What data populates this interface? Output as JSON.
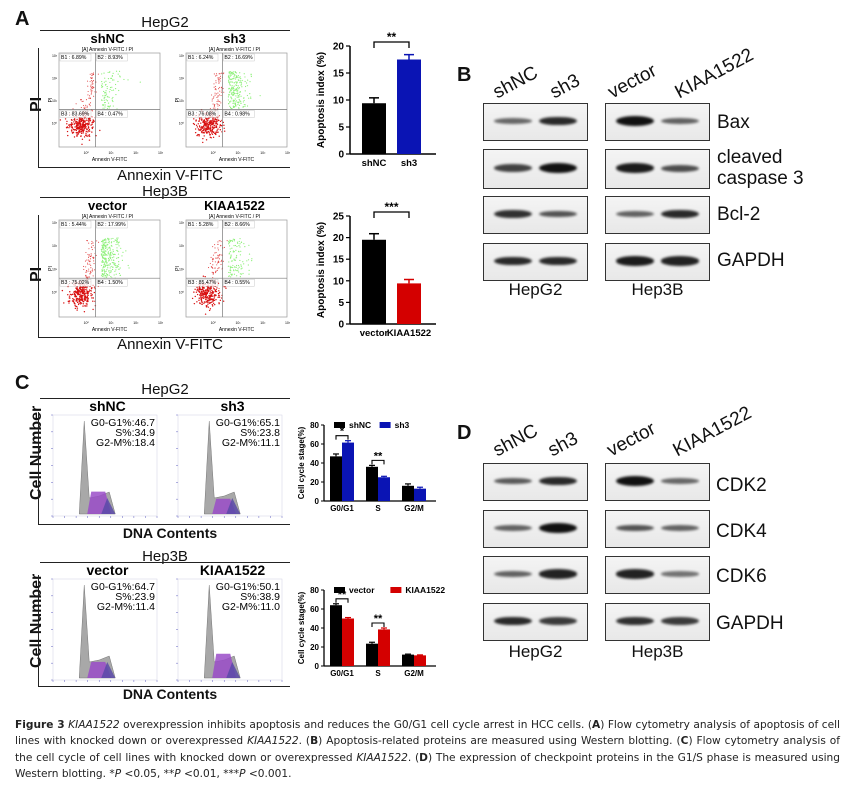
{
  "panels": {
    "A": {
      "letter": "A",
      "rows": [
        {
          "cell_line": "HepG2",
          "ylabel": "PI",
          "xlabel": "Annexin V-FITC",
          "plots": [
            {
              "title": "shNC",
              "inner_title": "[A] Annexin V-FITC / PI",
              "inner_xlabel": "Annexin V-FITC",
              "inner_ylabel": "PI",
              "quadrants": {
                "B1": "B1 : 6.89%",
                "B2": "B2 : 8.93%",
                "B3": "B3 : 83.69%",
                "B4": "B4 : 0.47%"
              }
            },
            {
              "title": "sh3",
              "inner_title": "[A] Annexin V-FITC / PI",
              "inner_xlabel": "Annexin V-FITC",
              "inner_ylabel": "PI",
              "quadrants": {
                "B1": "B1 : 6.24%",
                "B2": "B2 : 16.69%",
                "B3": "B3 : 76.08%",
                "B4": "B4 : 0.98%"
              }
            }
          ]
        },
        {
          "cell_line": "Hep3B",
          "ylabel": "PI",
          "xlabel": "Annexin V-FITC",
          "plots": [
            {
              "title": "vector",
              "inner_title": "[A] Annexin V-FITC / PI",
              "inner_xlabel": "Annexin V-FITC",
              "inner_ylabel": "PI",
              "quadrants": {
                "B1": "B1 : 5.44%",
                "B2": "B2 : 17.99%",
                "B3": "B3 : 75.02%",
                "B4": "B4 : 1.50%"
              }
            },
            {
              "title": "KIAA1522",
              "inner_title": "[A] Annexin V-FITC / PI",
              "inner_xlabel": "Annexin V-FITC",
              "inner_ylabel": "PI",
              "quadrants": {
                "B1": "B1 : 5.28%",
                "B2": "B2 : 8.66%",
                "B3": "B3 : 85.47%",
                "B4": "B4 : 0.55%"
              }
            }
          ]
        }
      ],
      "tick_labels": [
        "10⁰",
        "10¹",
        "10²",
        "10³"
      ]
    },
    "B": {
      "letter": "B",
      "lanes": [
        "shNC",
        "sh3",
        "vector",
        "KIAA1522"
      ],
      "proteins": [
        "Bax",
        "cleaved caspase 3",
        "Bcl-2",
        "GAPDH"
      ],
      "cell_lines": [
        "HepG2",
        "Hep3B"
      ]
    },
    "C": {
      "letter": "C",
      "rows": [
        {
          "cell_line": "HepG2",
          "ylabel": "Cell Number",
          "xlabel": "DNA Contents",
          "plots": [
            {
              "title": "shNC",
              "g0g1": "G0-G1%:46.7",
              "s": "S%:34.9",
              "g2m": "G2-M%:18.4"
            },
            {
              "title": "sh3",
              "g0g1": "G0-G1%:65.1",
              "s": "S%:23.8",
              "g2m": "G2-M%:11.1"
            }
          ]
        },
        {
          "cell_line": "Hep3B",
          "ylabel": "Cell Number",
          "xlabel": "DNA Contents",
          "plots": [
            {
              "title": "vector",
              "g0g1": "G0-G1%:64.7",
              "s": "S%:23.9",
              "g2m": "G2-M%:11.4"
            },
            {
              "title": "KIAA1522",
              "g0g1": "G0-G1%:50.1",
              "s": "S%:38.9",
              "g2m": "G2-M%:11.0"
            }
          ]
        }
      ]
    },
    "D": {
      "letter": "D",
      "lanes": [
        "shNC",
        "sh3",
        "vector",
        "KIAA1522"
      ],
      "proteins": [
        "CDK2",
        "CDK4",
        "CDK6",
        "GAPDH"
      ],
      "cell_lines": [
        "HepG2",
        "Hep3B"
      ]
    }
  },
  "colors": {
    "black": "#000000",
    "blue": "#0a14b4",
    "red": "#d40000",
    "green": "#8ef07a",
    "dotred": "#d81010"
  },
  "chart_data": [
    {
      "id": "apoptosis-hepg2",
      "type": "bar",
      "categories": [
        "shNC",
        "sh3"
      ],
      "values": [
        9.4,
        17.5
      ],
      "errors": [
        1.0,
        0.9
      ],
      "colors": [
        "#000000",
        "#0a14b4"
      ],
      "ylabel": "Apoptosis index (%)",
      "ylim": [
        0,
        20
      ],
      "yticks": [
        0,
        5,
        10,
        15,
        20
      ],
      "significance": "**"
    },
    {
      "id": "apoptosis-hep3b",
      "type": "bar",
      "categories": [
        "vector",
        "KIAA1522"
      ],
      "values": [
        19.5,
        9.4
      ],
      "errors": [
        1.4,
        0.9
      ],
      "colors": [
        "#000000",
        "#d40000"
      ],
      "ylabel": "Apoptosis index (%)",
      "ylim": [
        0,
        25
      ],
      "yticks": [
        0,
        5,
        10,
        15,
        20,
        25
      ],
      "significance": "***"
    },
    {
      "id": "cellcycle-hepg2",
      "type": "bar",
      "categories": [
        "G0/G1",
        "S",
        "G2/M"
      ],
      "series": [
        {
          "name": "shNC",
          "values": [
            47,
            36,
            16
          ],
          "errors": [
            2.5,
            1.5,
            2
          ],
          "color": "#000000"
        },
        {
          "name": "sh3",
          "values": [
            61.5,
            25,
            13
          ],
          "errors": [
            2,
            1,
            1.5
          ],
          "color": "#0a14b4"
        }
      ],
      "ylabel": "Cell cycle stage(%)",
      "ylim": [
        0,
        80
      ],
      "yticks": [
        0,
        20,
        40,
        60,
        80
      ],
      "legend": "top",
      "significance": [
        {
          "category": "G0/G1",
          "mark": "*"
        },
        {
          "category": "S",
          "mark": "**"
        }
      ]
    },
    {
      "id": "cellcycle-hep3b",
      "type": "bar",
      "categories": [
        "G0/G1",
        "S",
        "G2/M"
      ],
      "series": [
        {
          "name": "vector",
          "values": [
            64,
            23.5,
            12
          ],
          "errors": [
            1.5,
            1.5,
            0.5
          ],
          "color": "#000000"
        },
        {
          "name": "KIAA1522",
          "values": [
            50,
            38.5,
            11.2
          ],
          "errors": [
            1,
            1.5,
            0.5
          ],
          "color": "#d40000"
        }
      ],
      "ylabel": "Cell cycle stage(%)",
      "ylim": [
        0,
        80
      ],
      "yticks": [
        0,
        20,
        40,
        60,
        80
      ],
      "legend": "top",
      "significance": [
        {
          "category": "G0/G1",
          "mark": "**"
        },
        {
          "category": "S",
          "mark": "**"
        }
      ]
    }
  ],
  "caption": {
    "figure_label": "Figure 3",
    "gene": "KIAA1522",
    "title_rest": " overexpression inhibits apoptosis and reduces the G0/G1 cell cycle arrest in HCC cells. (",
    "a_text": ") Flow cytometry analysis of apoptosis of cell lines with knocked down or overexpressed ",
    "b_text": ") Apoptosis-related proteins are measured using Western blotting. (",
    "c_text": ") Flow cytometry analysis of the cell cycle of cell lines with knocked down or overexpressed ",
    "d_text": ") The expression of checkpoint proteins in the G1/S phase is measured using Western blotting. *",
    "p1": " <0.05, **",
    "p2": " <0.01, ***",
    "p3": " <0.001.",
    "p_symbol": "P",
    "letters": [
      "A",
      "B",
      "C",
      "D"
    ]
  }
}
